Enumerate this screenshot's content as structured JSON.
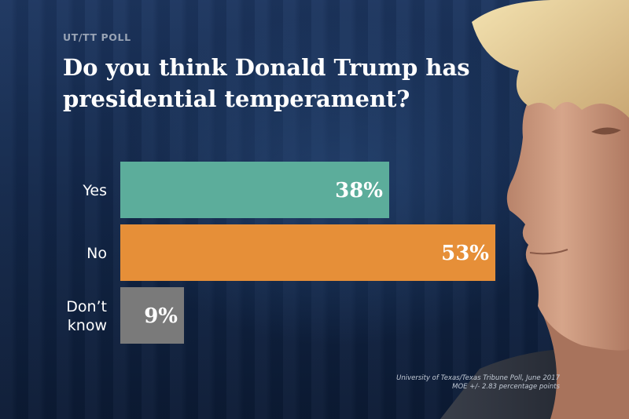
{
  "kicker": "UT/TT POLL",
  "headline": "Do you think Donald Trump has presidential temperament?",
  "source": {
    "line1": "University of Texas/Texas Tribune Poll, June 2017",
    "line2": "MOE +/- 2.83 percentage points"
  },
  "chart_data": {
    "type": "bar",
    "orientation": "horizontal",
    "title": "Do you think Donald Trump has presidential temperament?",
    "categories": [
      "Yes",
      "No",
      "Don't know"
    ],
    "category_lines": [
      [
        "Yes"
      ],
      [
        "No"
      ],
      [
        "Don’t",
        "know"
      ]
    ],
    "values": [
      38,
      53,
      9
    ],
    "value_labels": [
      "38%",
      "53%",
      "9%"
    ],
    "colors": [
      "#5cad9b",
      "#e68f38",
      "#7a7a7a"
    ],
    "xlim": [
      0,
      53
    ],
    "grid": false,
    "legend": "none"
  },
  "colors": {
    "value_text": "#ffffff",
    "category_text": "#ffffff"
  }
}
